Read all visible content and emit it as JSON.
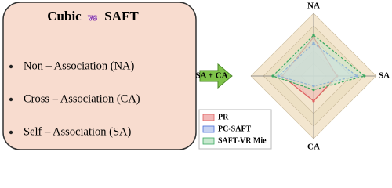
{
  "panel": {
    "title_left": "Cubic",
    "title_vs": "vs",
    "title_right": "SAFT",
    "bullets": [
      "Non – Association (NA)",
      "Cross – Association (CA)",
      "Self – Association (SA)"
    ]
  },
  "radar": {
    "axes": [
      "NA",
      "SA",
      "CA",
      "SA + CA"
    ],
    "series": [
      {
        "name": "PR",
        "color": "#e06060",
        "fill": "#f2b8b8",
        "values": [
          0.62,
          0.37,
          0.4,
          0.5
        ]
      },
      {
        "name": "PC-SAFT",
        "color": "#4a6fd8",
        "fill": "#c6d3f2",
        "values": [
          0.52,
          0.69,
          0.16,
          0.56
        ]
      },
      {
        "name": "SAFT-VR Mie",
        "color": "#3aa860",
        "fill": "#c8e9cf",
        "values": [
          0.65,
          0.81,
          0.22,
          0.65
        ]
      }
    ]
  }
}
